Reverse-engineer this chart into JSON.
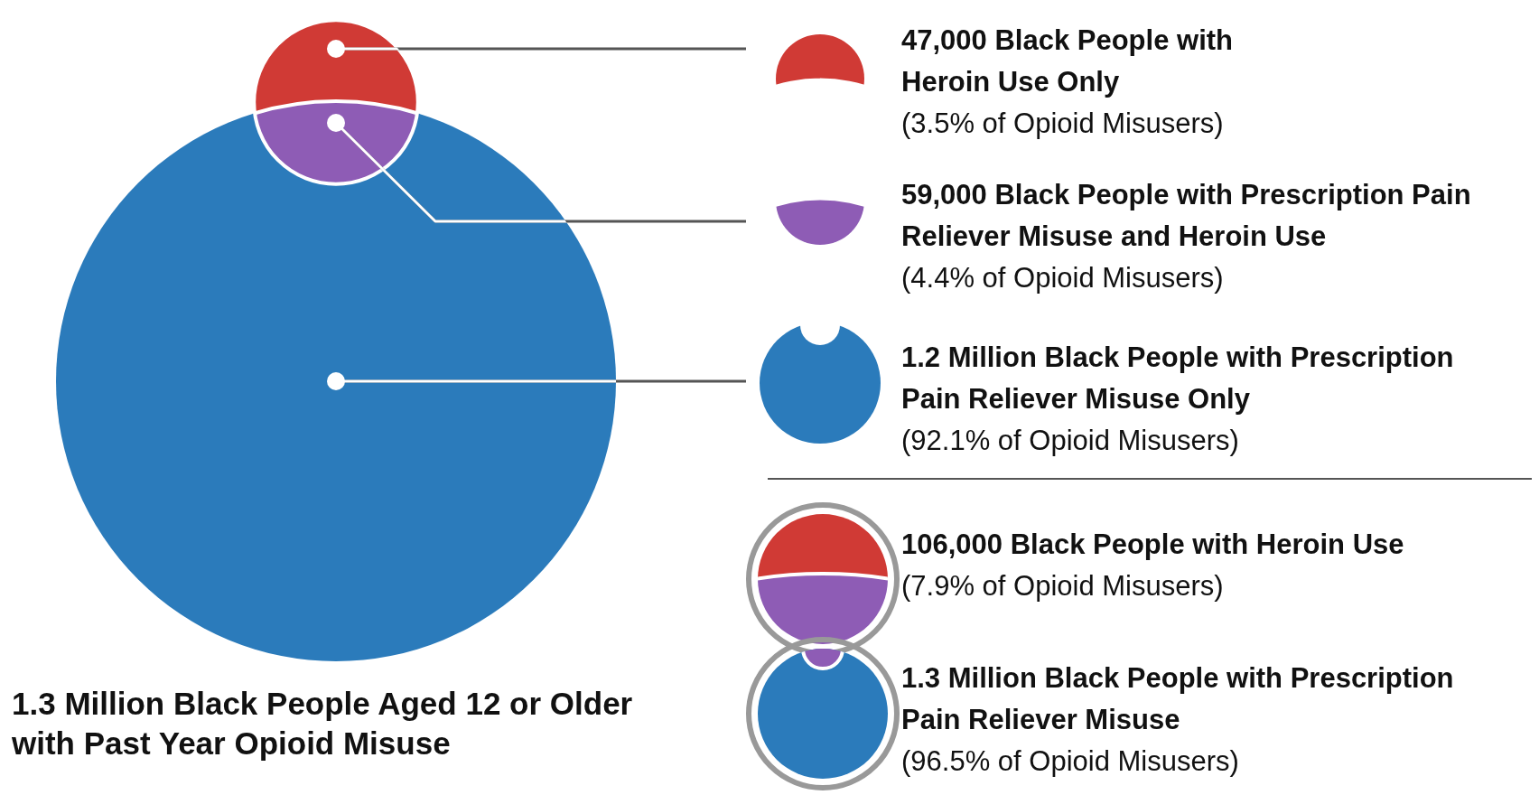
{
  "chart_data": {
    "type": "other",
    "title": "1.3 Million Black People Aged 12 or Older with Past Year Opioid Misuse",
    "categories": [
      "47,000 Black People with Heroin Use Only",
      "59,000 Black People with Prescription Pain Reliever Misuse and Heroin Use",
      "1.2 Million Black People with Prescription Pain Reliever Misuse Only"
    ],
    "values": [
      3.5,
      4.4,
      92.1
    ],
    "value_labels": [
      "(3.5% of Opioid Misusers)",
      "(4.4% of Opioid Misusers)",
      "(92.1% of Opioid Misusers)"
    ],
    "colors": [
      "#d03a35",
      "#8e5cb5",
      "#2b7bbb"
    ],
    "annotations": [
      "106,000 Black People with Heroin Use",
      "(7.9% of Opioid Misusers)",
      "1.3 Million Black People with Prescription Pain Reliever Misuse",
      "(96.5% of Opioid Misusers)"
    ]
  }
}
